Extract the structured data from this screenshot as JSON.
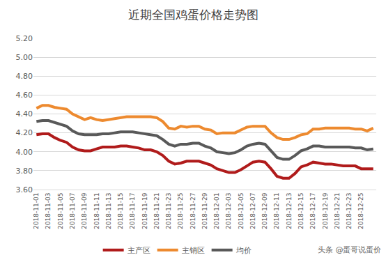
{
  "chart_data": {
    "type": "line",
    "title": "近期全国鸡蛋价格走势图",
    "categories": [
      "2018-11-01",
      null,
      "2018-11-03",
      null,
      "2018-11-05",
      null,
      "2018-11-07",
      null,
      "2018-11-09",
      null,
      "2018-11-11",
      null,
      "2018-11-13",
      null,
      "2018-11-15",
      null,
      "2018-11-17",
      null,
      "2018-11-19",
      null,
      "2018-11-21",
      null,
      "2018-11-23",
      null,
      "2018-11-25",
      null,
      "2018-11-27",
      null,
      "2018-11-29",
      null,
      "2018-12-01",
      null,
      "2018-12-03",
      null,
      "2018-12-05",
      null,
      "2018-12-07",
      null,
      "2018-12-09",
      null,
      "2018-12-11",
      null,
      "2018-12-13",
      null,
      "2018-12-15",
      null,
      "2018-12-17",
      null,
      "2018-12-19",
      null,
      "2018-12-21",
      null,
      "2018-12-23",
      null,
      "2018-12-25",
      null,
      null
    ],
    "series": [
      {
        "name": "主产区",
        "color": "#b01b1b",
        "values": [
          4.18,
          4.19,
          4.19,
          4.15,
          4.12,
          4.1,
          4.05,
          4.02,
          4.01,
          4.01,
          4.03,
          4.05,
          4.05,
          4.05,
          4.06,
          4.06,
          4.05,
          4.04,
          4.02,
          4.02,
          4.0,
          3.96,
          3.9,
          3.87,
          3.88,
          3.9,
          3.9,
          3.9,
          3.88,
          3.86,
          3.82,
          3.8,
          3.78,
          3.78,
          3.81,
          3.85,
          3.89,
          3.9,
          3.89,
          3.82,
          3.74,
          3.72,
          3.72,
          3.77,
          3.84,
          3.86,
          3.89,
          3.88,
          3.87,
          3.87,
          3.86,
          3.85,
          3.85,
          3.85,
          3.82,
          3.82,
          3.82
        ]
      },
      {
        "name": "主销区",
        "color": "#ed8a2f",
        "values": [
          4.46,
          4.49,
          4.49,
          4.47,
          4.46,
          4.45,
          4.4,
          4.37,
          4.34,
          4.36,
          4.34,
          4.33,
          4.34,
          4.35,
          4.36,
          4.37,
          4.37,
          4.37,
          4.37,
          4.37,
          4.36,
          4.32,
          4.25,
          4.24,
          4.27,
          4.26,
          4.27,
          4.27,
          4.24,
          4.23,
          4.19,
          4.2,
          4.2,
          4.2,
          4.23,
          4.26,
          4.27,
          4.27,
          4.27,
          4.2,
          4.15,
          4.13,
          4.13,
          4.15,
          4.18,
          4.19,
          4.24,
          4.24,
          4.25,
          4.25,
          4.25,
          4.25,
          4.25,
          4.24,
          4.24,
          4.22,
          4.25
        ]
      },
      {
        "name": "均价",
        "color": "#595959",
        "values": [
          4.32,
          4.33,
          4.33,
          4.31,
          4.29,
          4.27,
          4.22,
          4.19,
          4.18,
          4.18,
          4.18,
          4.19,
          4.19,
          4.2,
          4.21,
          4.21,
          4.21,
          4.2,
          4.19,
          4.18,
          4.17,
          4.13,
          4.08,
          4.06,
          4.08,
          4.08,
          4.09,
          4.09,
          4.06,
          4.04,
          4.0,
          3.99,
          3.98,
          3.99,
          4.02,
          4.06,
          4.08,
          4.09,
          4.08,
          4.01,
          3.94,
          3.92,
          3.92,
          3.96,
          4.01,
          4.03,
          4.06,
          4.06,
          4.05,
          4.05,
          4.05,
          4.05,
          4.05,
          4.04,
          4.04,
          4.02,
          4.03
        ]
      }
    ],
    "ylim": [
      3.6,
      5.2
    ],
    "yticks": [
      {
        "value": 3.6,
        "label": "3.60"
      },
      {
        "value": 3.8,
        "label": "3.80"
      },
      {
        "value": 4.0,
        "label": "4.00"
      },
      {
        "value": 4.2,
        "label": "4.20"
      },
      {
        "value": 4.4,
        "label": "4.40"
      },
      {
        "value": 4.6,
        "label": "4.60"
      },
      {
        "value": 4.8,
        "label": "4.80"
      },
      {
        "value": 5.0,
        "label": "5.00"
      },
      {
        "value": 5.2,
        "label": "5.20"
      }
    ],
    "grid": true,
    "legend": "bottom",
    "annotations": [
      {
        "text": "头条 @蛋哥说蛋价"
      }
    ]
  }
}
